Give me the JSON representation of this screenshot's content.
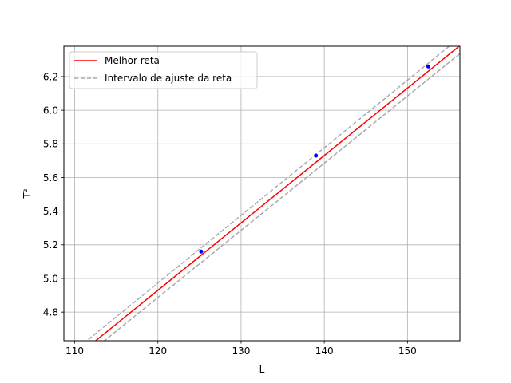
{
  "chart_data": {
    "type": "line",
    "xlabel": "L",
    "ylabel": "T²",
    "xlim": [
      108.7,
      156.3
    ],
    "ylim": [
      4.63,
      6.38
    ],
    "xticks": [
      110,
      120,
      130,
      140,
      150
    ],
    "yticks": [
      4.8,
      5.0,
      5.2,
      5.4,
      5.6,
      5.8,
      6.0,
      6.2
    ],
    "xtick_labels": [
      "110",
      "120",
      "130",
      "140",
      "150"
    ],
    "ytick_labels": [
      "4.8",
      "5.0",
      "5.2",
      "5.4",
      "5.6",
      "5.8",
      "6.0",
      "6.2"
    ],
    "grid": true,
    "legend_position": "upper-left",
    "points": {
      "color": "#0000ff",
      "x": [
        125.2,
        139.0,
        152.5
      ],
      "y": [
        5.16,
        5.73,
        6.26
      ]
    },
    "series": [
      {
        "name": "Melhor reta",
        "style": "solid",
        "color": "#ff0000",
        "x": [
          108.7,
          156.3
        ],
        "y": [
          4.477,
          6.384
        ]
      },
      {
        "name": "Intervalo de ajuste da reta",
        "style": "dashed",
        "color": "#aaaaaa",
        "x": [
          108.7,
          156.3
        ],
        "y": [
          4.519,
          6.432
        ]
      },
      {
        "name": "",
        "style": "dashed",
        "color": "#aaaaaa",
        "x": [
          108.7,
          156.3
        ],
        "y": [
          4.436,
          6.336
        ]
      }
    ]
  }
}
